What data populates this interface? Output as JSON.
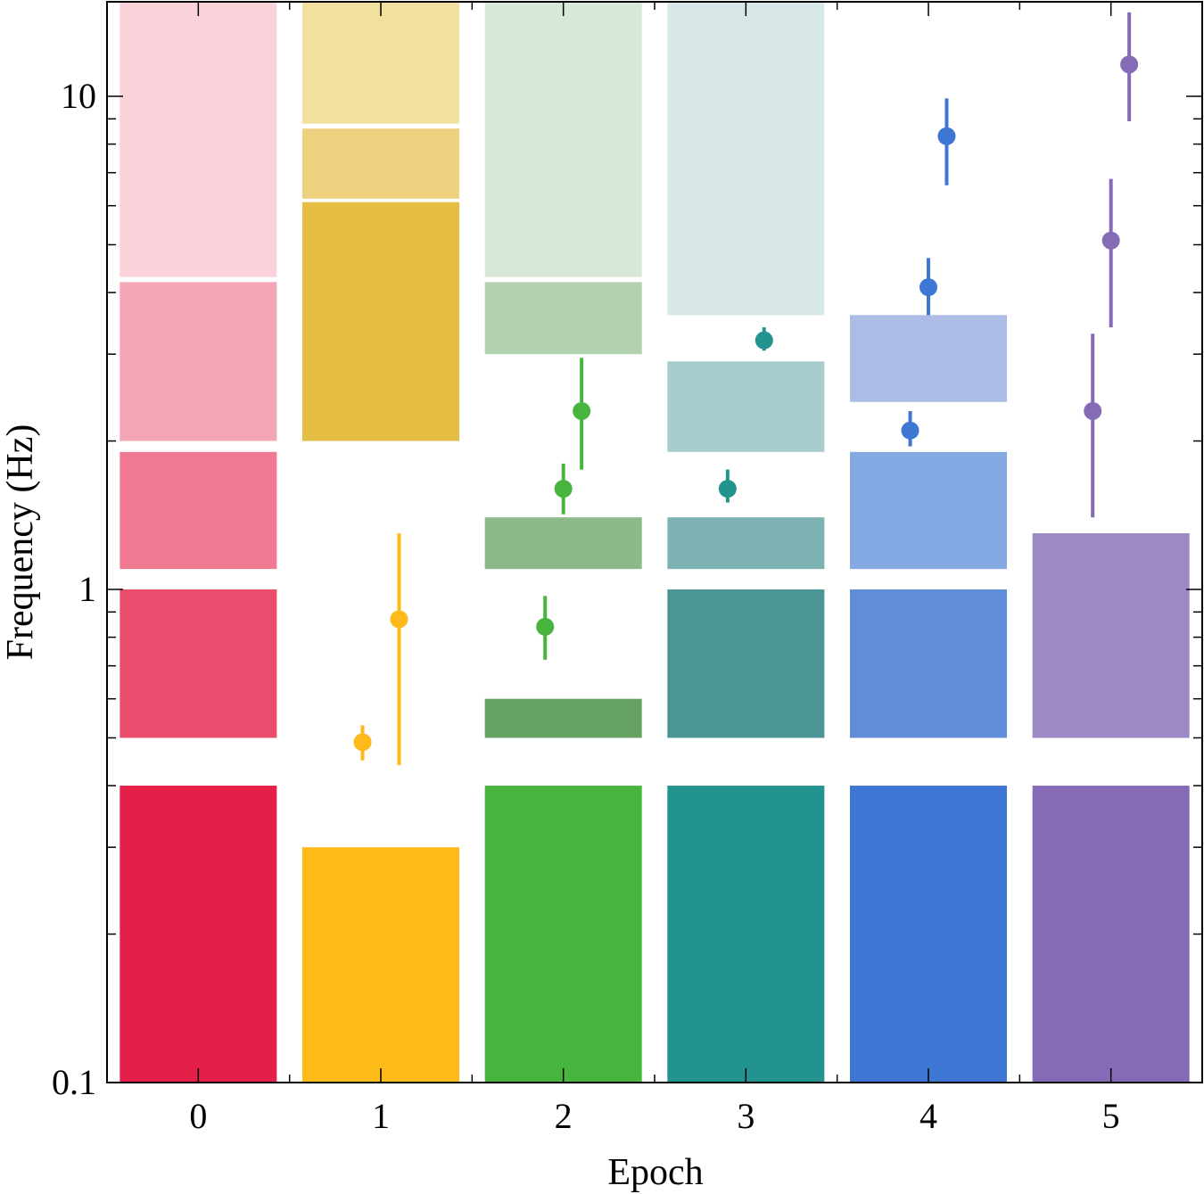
{
  "chart_data": {
    "type": "bar",
    "title": "",
    "xlabel": "Epoch",
    "ylabel": "Frequency (Hz)",
    "yscale": "log",
    "ylim": [
      0.1,
      16
    ],
    "xlim": [
      -0.5,
      5.5
    ],
    "x_ticks": [
      "0",
      "1",
      "2",
      "3",
      "4",
      "5"
    ],
    "y_ticks": [
      "0.1",
      "1",
      "10"
    ],
    "grid": false,
    "legend": "none",
    "bands": [
      {
        "epoch": 0,
        "color": "#e42048",
        "alpha": 1.0,
        "low": 0.1,
        "high": 0.4
      },
      {
        "epoch": 0,
        "color": "#e42048",
        "alpha": 0.8,
        "low": 0.5,
        "high": 1.0
      },
      {
        "epoch": 0,
        "color": "#e42048",
        "alpha": 0.6,
        "low": 1.1,
        "high": 1.9
      },
      {
        "epoch": 0,
        "color": "#e42048",
        "alpha": 0.4,
        "low": 2.0,
        "high": 4.2
      },
      {
        "epoch": 0,
        "color": "#e42048",
        "alpha": 0.2,
        "low": 4.3,
        "high": 16
      },
      {
        "epoch": 1,
        "color": "#fdba19",
        "alpha": 1.0,
        "low": 0.1,
        "high": 0.3
      },
      {
        "epoch": 1,
        "color": "#dfac14",
        "alpha": 0.8,
        "low": 2.0,
        "high": 6.1
      },
      {
        "epoch": 1,
        "color": "#dfac14",
        "alpha": 0.55,
        "low": 6.2,
        "high": 8.6
      },
      {
        "epoch": 1,
        "color": "#e6c140",
        "alpha": 0.5,
        "low": 8.8,
        "high": 16
      },
      {
        "epoch": 2,
        "color": "#47b53d",
        "alpha": 1.0,
        "low": 0.1,
        "high": 0.4
      },
      {
        "epoch": 2,
        "color": "#3e8b3a",
        "alpha": 0.8,
        "low": 0.5,
        "high": 0.6
      },
      {
        "epoch": 2,
        "color": "#3e8b3a",
        "alpha": 0.6,
        "low": 1.1,
        "high": 1.4
      },
      {
        "epoch": 2,
        "color": "#3e8b3a",
        "alpha": 0.4,
        "low": 3.0,
        "high": 4.2
      },
      {
        "epoch": 2,
        "color": "#3e8b3a",
        "alpha": 0.2,
        "low": 4.3,
        "high": 16
      },
      {
        "epoch": 3,
        "color": "#239390",
        "alpha": 1.0,
        "low": 0.1,
        "high": 0.4
      },
      {
        "epoch": 3,
        "color": "#267f80",
        "alpha": 0.83,
        "low": 0.5,
        "high": 1.0
      },
      {
        "epoch": 3,
        "color": "#267f80",
        "alpha": 0.6,
        "low": 1.1,
        "high": 1.4
      },
      {
        "epoch": 3,
        "color": "#267f80",
        "alpha": 0.4,
        "low": 1.9,
        "high": 2.9
      },
      {
        "epoch": 3,
        "color": "#267f80",
        "alpha": 0.18,
        "low": 3.6,
        "high": 16
      },
      {
        "epoch": 4,
        "color": "#3e76d3",
        "alpha": 1.0,
        "low": 0.1,
        "high": 0.4
      },
      {
        "epoch": 4,
        "color": "#3e76d3",
        "alpha": 0.83,
        "low": 0.5,
        "high": 1.0
      },
      {
        "epoch": 4,
        "color": "#3e76d3",
        "alpha": 0.63,
        "low": 1.1,
        "high": 1.9
      },
      {
        "epoch": 4,
        "color": "#5c79cf",
        "alpha": 0.5,
        "low": 2.4,
        "high": 3.6
      },
      {
        "epoch": 5,
        "color": "#856bb6",
        "alpha": 1.0,
        "low": 0.1,
        "high": 0.4
      },
      {
        "epoch": 5,
        "color": "#856bb6",
        "alpha": 0.8,
        "low": 0.5,
        "high": 1.3
      }
    ],
    "points": [
      {
        "epoch": 1,
        "x": 0.9,
        "y": 0.49,
        "err_low": 0.45,
        "err_high": 0.53,
        "color": "#fdba19"
      },
      {
        "epoch": 1,
        "x": 1.1,
        "y": 0.87,
        "err_low": 0.44,
        "err_high": 1.3,
        "color": "#fdba19"
      },
      {
        "epoch": 2,
        "x": 1.9,
        "y": 0.84,
        "err_low": 0.72,
        "err_high": 0.97,
        "color": "#47b53d"
      },
      {
        "epoch": 2,
        "x": 2.0,
        "y": 1.6,
        "err_low": 1.42,
        "err_high": 1.8,
        "color": "#47b53d"
      },
      {
        "epoch": 2,
        "x": 2.1,
        "y": 2.3,
        "err_low": 1.75,
        "err_high": 2.95,
        "color": "#47b53d"
      },
      {
        "epoch": 3,
        "x": 2.9,
        "y": 1.6,
        "err_low": 1.5,
        "err_high": 1.75,
        "color": "#239390"
      },
      {
        "epoch": 3,
        "x": 3.1,
        "y": 3.2,
        "err_low": 3.05,
        "err_high": 3.4,
        "color": "#239390"
      },
      {
        "epoch": 4,
        "x": 3.9,
        "y": 2.1,
        "err_low": 1.95,
        "err_high": 2.3,
        "color": "#3e76d3"
      },
      {
        "epoch": 4,
        "x": 4.0,
        "y": 4.1,
        "err_low": 3.6,
        "err_high": 4.7,
        "color": "#3e76d3"
      },
      {
        "epoch": 4,
        "x": 4.1,
        "y": 8.3,
        "err_low": 6.6,
        "err_high": 9.9,
        "color": "#3e76d3"
      },
      {
        "epoch": 5,
        "x": 4.9,
        "y": 2.3,
        "err_low": 1.4,
        "err_high": 3.3,
        "color": "#856bb6"
      },
      {
        "epoch": 5,
        "x": 5.0,
        "y": 5.1,
        "err_low": 3.4,
        "err_high": 6.8,
        "color": "#856bb6"
      },
      {
        "epoch": 5,
        "x": 5.1,
        "y": 11.6,
        "err_low": 8.9,
        "err_high": 14.8,
        "color": "#856bb6"
      }
    ]
  }
}
